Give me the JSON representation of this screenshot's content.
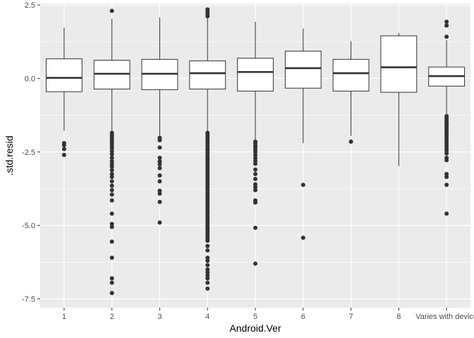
{
  "chart_data": {
    "type": "boxplot",
    "xlabel": "Android.Ver",
    "ylabel": ".std.resid",
    "categories": [
      "1",
      "2",
      "3",
      "4",
      "5",
      "6",
      "7",
      "8",
      "Varies with device"
    ],
    "ylim": [
      -7.8,
      2.55
    ],
    "y_ticks": [
      2.5,
      0.0,
      -2.5,
      -5.0,
      -7.5
    ],
    "y_tick_labels": [
      "2.5",
      "0.0",
      "-2.5",
      "-5.0",
      "-7.5"
    ],
    "grid": true,
    "panel_background": "#ebebeb",
    "grid_color": "#ffffff",
    "box_fill": "#ffffff",
    "box_stroke": "#333333",
    "outlier_color": "#333333",
    "boxes": [
      {
        "category": "1",
        "whisker_low": -1.78,
        "q1": -0.45,
        "median": 0.02,
        "q3": 0.67,
        "whisker_high": 1.73,
        "outliers": [
          -2.2,
          -2.27,
          -2.4,
          -2.6
        ]
      },
      {
        "category": "2",
        "whisker_low": -1.82,
        "q1": -0.36,
        "median": 0.16,
        "q3": 0.62,
        "whisker_high": 2.03,
        "outliers": [
          2.3,
          -1.85,
          -1.92,
          -2.0,
          -2.08,
          -2.15,
          -2.22,
          -2.3,
          -2.38,
          -2.48,
          -2.58,
          -2.7,
          -2.82,
          -2.92,
          -3.0,
          -3.12,
          -3.25,
          -3.35,
          -3.5,
          -3.65,
          -3.8,
          -3.95,
          -4.15,
          -4.6,
          -4.95,
          -5.05,
          -5.55,
          -6.1,
          -6.8,
          -6.95,
          -7.3
        ]
      },
      {
        "category": "3",
        "whisker_low": -1.95,
        "q1": -0.38,
        "median": 0.16,
        "q3": 0.65,
        "whisker_high": 2.08,
        "outliers": [
          -2.02,
          -2.1,
          -2.35,
          -2.7,
          -2.82,
          -2.92,
          -3.05,
          -3.3,
          -3.5,
          -3.82,
          -3.92,
          -4.2,
          -4.9
        ]
      },
      {
        "category": "4",
        "whisker_low": -1.8,
        "q1": -0.36,
        "median": 0.18,
        "q3": 0.6,
        "whisker_high": 2.05,
        "outliers": [
          2.35,
          2.28,
          2.2,
          2.12,
          -1.85,
          -1.92,
          -2.0,
          -2.08,
          -2.15,
          -2.22,
          -2.3,
          -2.38,
          -2.45,
          -2.52,
          -2.6,
          -2.68,
          -2.75,
          -2.82,
          -2.9,
          -2.98,
          -3.05,
          -3.12,
          -3.2,
          -3.28,
          -3.35,
          -3.42,
          -3.5,
          -3.58,
          -3.65,
          -3.72,
          -3.8,
          -3.88,
          -3.95,
          -4.02,
          -4.1,
          -4.18,
          -4.25,
          -4.32,
          -4.4,
          -4.48,
          -4.55,
          -4.62,
          -4.7,
          -4.78,
          -4.85,
          -4.92,
          -5.0,
          -5.08,
          -5.15,
          -5.22,
          -5.3,
          -5.38,
          -5.45,
          -5.52,
          -5.7,
          -5.85,
          -6.1,
          -6.2,
          -6.35,
          -6.5,
          -6.6,
          -6.7,
          -6.8,
          -6.95,
          -7.15
        ]
      },
      {
        "category": "5",
        "whisker_low": -2.12,
        "q1": -0.43,
        "median": 0.22,
        "q3": 0.69,
        "whisker_high": 1.93,
        "outliers": [
          -2.15,
          -2.2,
          -2.28,
          -2.35,
          -2.42,
          -2.5,
          -2.6,
          -2.7,
          -2.8,
          -2.9,
          -3.1,
          -3.25,
          -3.42,
          -3.6,
          -3.7,
          -3.8,
          -4.15,
          -4.22,
          -5.08,
          -6.3
        ]
      },
      {
        "category": "6",
        "whisker_low": -2.2,
        "q1": -0.33,
        "median": 0.35,
        "q3": 0.93,
        "whisker_high": 1.7,
        "outliers": [
          -3.62,
          -5.42
        ]
      },
      {
        "category": "7",
        "whisker_low": -1.95,
        "q1": -0.43,
        "median": 0.18,
        "q3": 0.65,
        "whisker_high": 1.27,
        "outliers": [
          -2.15
        ]
      },
      {
        "category": "8",
        "whisker_low": -2.98,
        "q1": -0.47,
        "median": 0.38,
        "q3": 1.45,
        "whisker_high": 1.55,
        "outliers": []
      },
      {
        "category": "Varies with device",
        "whisker_low": -1.25,
        "q1": -0.26,
        "median": 0.08,
        "q3": 0.39,
        "whisker_high": 1.3,
        "outliers": [
          1.93,
          1.8,
          1.42,
          -1.28,
          -1.32,
          -1.38,
          -1.45,
          -1.5,
          -1.55,
          -1.6,
          -1.65,
          -1.72,
          -1.78,
          -1.85,
          -1.92,
          -2.0,
          -2.08,
          -2.15,
          -2.22,
          -2.3,
          -2.38,
          -2.45,
          -2.55,
          -2.7,
          -2.78,
          -3.25,
          -3.35,
          -3.62,
          -4.6
        ]
      }
    ]
  }
}
